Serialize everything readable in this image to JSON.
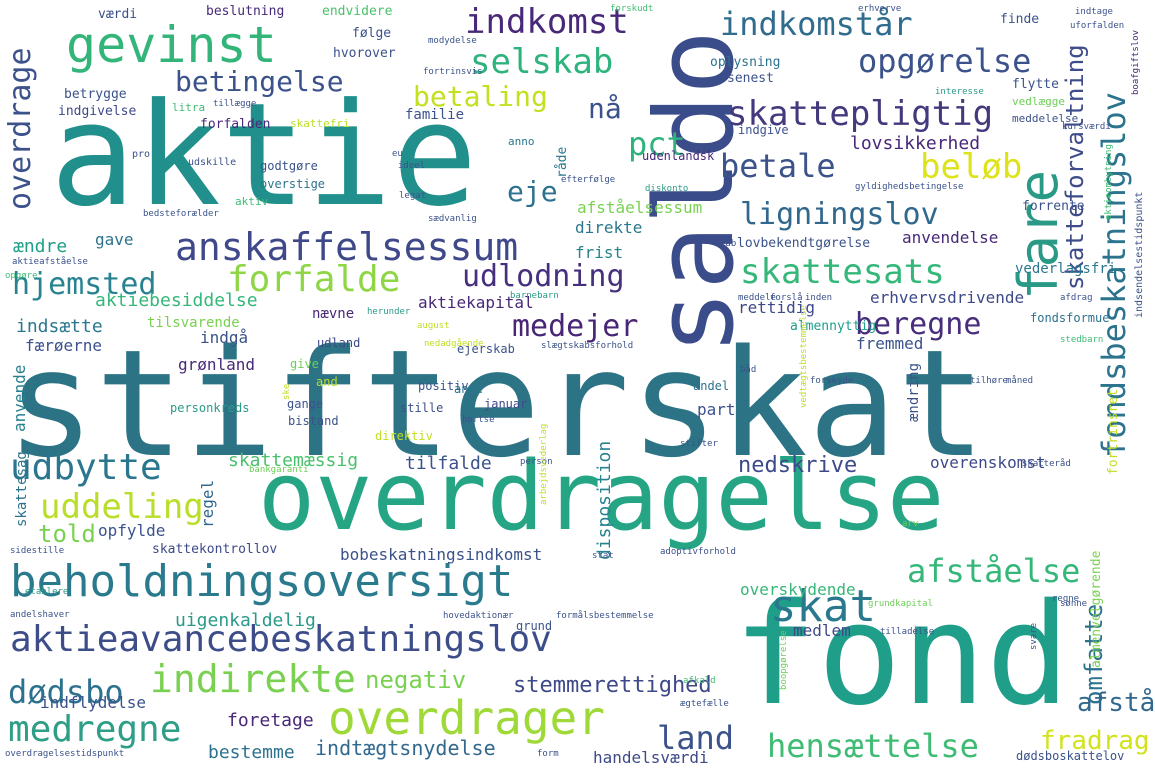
{
  "words": [
    {
      "text": "stifterskat",
      "color": "#2c7485"
    },
    {
      "text": "aktie",
      "color": "#21908c"
    },
    {
      "text": "overdragelse",
      "color": "#25a584"
    },
    {
      "text": "fond",
      "color": "#1f9e89"
    },
    {
      "text": "saldo",
      "color": "#3b4c8a"
    },
    {
      "text": "beholdningsoversigt",
      "color": "#2a7a8e"
    },
    {
      "text": "aktieavancebeskatningslov",
      "color": "#3d4d8a"
    },
    {
      "text": "overdrager",
      "color": "#9fd938"
    },
    {
      "text": "gevinst",
      "color": "#33b57a"
    },
    {
      "text": "fare",
      "color": "#2a9a87"
    },
    {
      "text": "fondsbeskatningslov",
      "color": "#2c738e"
    },
    {
      "text": "anskaffelsessum",
      "color": "#3f4889"
    },
    {
      "text": "indirekte",
      "color": "#7ad151"
    },
    {
      "text": "medregne",
      "color": "#2f9e87"
    },
    {
      "text": "forfalde",
      "color": "#8ed645"
    },
    {
      "text": "skattesats",
      "color": "#35b779"
    },
    {
      "text": "skatteforvaltning",
      "color": "#3e4c8a"
    },
    {
      "text": "indkomstår",
      "color": "#2f6c8e"
    },
    {
      "text": "opgørelse",
      "color": "#3b528b"
    },
    {
      "text": "selskab",
      "color": "#2eb37c"
    },
    {
      "text": "indkomst",
      "color": "#482878"
    },
    {
      "text": "betingelse",
      "color": "#3b528b"
    },
    {
      "text": "betaling",
      "color": "#c5e021"
    },
    {
      "text": "skattepligtig",
      "color": "#44397d"
    },
    {
      "text": "overdrage",
      "color": "#3b528b"
    },
    {
      "text": "betale",
      "color": "#3b528b"
    },
    {
      "text": "beløb",
      "color": "#dde318"
    },
    {
      "text": "ligningslov",
      "color": "#31688e"
    },
    {
      "text": "hjemsted",
      "color": "#26838f"
    },
    {
      "text": "udlodning",
      "color": "#46307e"
    },
    {
      "text": "medejer",
      "color": "#482576"
    },
    {
      "text": "beregne",
      "color": "#472d7b"
    },
    {
      "text": "udbytte",
      "color": "#2a768e"
    },
    {
      "text": "uddeling",
      "color": "#b8de29"
    },
    {
      "text": "skat",
      "color": "#2a788e"
    },
    {
      "text": "afståelse",
      "color": "#35b779"
    },
    {
      "text": "omfatte",
      "color": "#2c728e"
    },
    {
      "text": "hensættelse",
      "color": "#3fbc73"
    },
    {
      "text": "land",
      "color": "#3b528b"
    },
    {
      "text": "dødsbo",
      "color": "#2c728e"
    },
    {
      "text": "stemmerettighed",
      "color": "#3e4989"
    },
    {
      "text": "negativ",
      "color": "#7ad151"
    },
    {
      "text": "fradrag",
      "color": "#d2e21b"
    },
    {
      "text": "afstå",
      "color": "#31688e"
    },
    {
      "text": "nå",
      "color": "#3b528b"
    },
    {
      "text": "pct",
      "color": "#2eb37c"
    },
    {
      "text": "eje",
      "color": "#2c728e"
    },
    {
      "text": "lovsikkerhed",
      "color": "#482878"
    },
    {
      "text": "told",
      "color": "#7ad151"
    },
    {
      "text": "nedskrive",
      "color": "#3e4989"
    },
    {
      "text": "tilfalde",
      "color": "#3b528b"
    },
    {
      "text": "skattemæssig",
      "color": "#4ac16d"
    },
    {
      "text": "overenskomst",
      "color": "#3e4989"
    },
    {
      "text": "indtægtsnydelse",
      "color": "#31688e"
    },
    {
      "text": "handelsværdi",
      "color": "#3e4989"
    },
    {
      "text": "bestemme",
      "color": "#2c728e"
    },
    {
      "text": "foretage",
      "color": "#482878"
    },
    {
      "text": "indflydelse",
      "color": "#3b528b"
    },
    {
      "text": "medlem",
      "color": "#3e4989"
    },
    {
      "text": "uigenkaldelig",
      "color": "#2a9a87"
    },
    {
      "text": "bobeskatningsindkomst",
      "color": "#3b528b"
    },
    {
      "text": "skattekontrollov",
      "color": "#3e4989"
    },
    {
      "text": "opfylde",
      "color": "#3b528b"
    },
    {
      "text": "regel",
      "color": "#31688e"
    },
    {
      "text": "overskydende",
      "color": "#35b779"
    },
    {
      "text": "disposition",
      "color": "#26838f"
    },
    {
      "text": "part",
      "color": "#3b528b"
    },
    {
      "text": "ændring",
      "color": "#3b528b"
    },
    {
      "text": "fremmed",
      "color": "#3b528b"
    },
    {
      "text": "almennyttig",
      "color": "#1f9e89"
    },
    {
      "text": "erhvervsdrivende",
      "color": "#3e4989"
    },
    {
      "text": "aktiekapital",
      "color": "#482878"
    },
    {
      "text": "aktiebesiddelse",
      "color": "#35b779"
    },
    {
      "text": "rettidig",
      "color": "#3e4989"
    },
    {
      "text": "fondsformue",
      "color": "#2c728e"
    },
    {
      "text": "anvendelse",
      "color": "#482878"
    },
    {
      "text": "vederlagsfri",
      "color": "#2a788e"
    },
    {
      "text": "lovbekendtgørelse",
      "color": "#3b528b"
    },
    {
      "text": "frist",
      "color": "#25858e"
    },
    {
      "text": "direkte",
      "color": "#2a788e"
    },
    {
      "text": "afståelsessum",
      "color": "#7ad151"
    },
    {
      "text": "forrente",
      "color": "#3b528b"
    },
    {
      "text": "ændre",
      "color": "#1f9e89"
    },
    {
      "text": "gave",
      "color": "#2c728e"
    },
    {
      "text": "indsætte",
      "color": "#2a788e"
    },
    {
      "text": "færøerne",
      "color": "#3b528b"
    },
    {
      "text": "nævne",
      "color": "#482878"
    },
    {
      "text": "indgå",
      "color": "#3b528b"
    },
    {
      "text": "grønland",
      "color": "#482878"
    },
    {
      "text": "anvende",
      "color": "#26828e"
    },
    {
      "text": "skattesag",
      "color": "#2c728e"
    },
    {
      "text": "tilsvarende",
      "color": "#7ad151"
    },
    {
      "text": "udland",
      "color": "#3e4989"
    },
    {
      "text": "ejerskab",
      "color": "#3b528b"
    },
    {
      "text": "positiv",
      "color": "#3b528b"
    },
    {
      "text": "anse",
      "color": "#2a788e"
    },
    {
      "text": "januar",
      "color": "#3e4989"
    },
    {
      "text": "stille",
      "color": "#3b528b"
    },
    {
      "text": "andel",
      "color": "#2c728e"
    },
    {
      "text": "gange",
      "color": "#3b528b"
    },
    {
      "text": "bistand",
      "color": "#3b528b"
    },
    {
      "text": "personkreds",
      "color": "#2a9a87"
    },
    {
      "text": "give",
      "color": "#6ece58"
    },
    {
      "text": "and",
      "color": "#bddf26"
    },
    {
      "text": "direktiv",
      "color": "#c2df23"
    },
    {
      "text": "værdi",
      "color": "#3b528b"
    },
    {
      "text": "beslutning",
      "color": "#482878"
    },
    {
      "text": "endvidere",
      "color": "#4ac16d"
    },
    {
      "text": "følge",
      "color": "#3b528b"
    },
    {
      "text": "hvorover",
      "color": "#3b528b"
    },
    {
      "text": "betrygge",
      "color": "#3b528b"
    },
    {
      "text": "indgivelse",
      "color": "#3e4989"
    },
    {
      "text": "familie",
      "color": "#3b528b"
    },
    {
      "text": "forfalden",
      "color": "#482878"
    },
    {
      "text": "skattefri",
      "color": "#bddf26"
    },
    {
      "text": "godtgøre",
      "color": "#3b528b"
    },
    {
      "text": "overstige",
      "color": "#2c728e"
    },
    {
      "text": "oplysning",
      "color": "#2c728e"
    },
    {
      "text": "senest",
      "color": "#3b528b"
    },
    {
      "text": "finde",
      "color": "#3b528b"
    },
    {
      "text": "flytte",
      "color": "#3b528b"
    },
    {
      "text": "vedlægge",
      "color": "#6ece58"
    },
    {
      "text": "meddelelse",
      "color": "#3b528b"
    },
    {
      "text": "indgive",
      "color": "#3b528b"
    },
    {
      "text": "udenlandsk",
      "color": "#482878"
    },
    {
      "text": "råde",
      "color": "#2a788e"
    },
    {
      "text": "anno",
      "color": "#2a788e"
    },
    {
      "text": "litra",
      "color": "#3fbc73"
    },
    {
      "text": "aktiv",
      "color": "#3fbc73"
    },
    {
      "text": "udskille",
      "color": "#3b528b"
    },
    {
      "text": "pro",
      "color": "#3b528b"
    },
    {
      "text": "indtage",
      "color": "#3b528b"
    },
    {
      "text": "uforfalden",
      "color": "#3b528b"
    },
    {
      "text": "forskudt",
      "color": "#3fbc73"
    },
    {
      "text": "modydelse",
      "color": "#3b528b"
    },
    {
      "text": "fortrinsvis",
      "color": "#3b528b"
    },
    {
      "text": "interesse",
      "color": "#2a9a87"
    },
    {
      "text": "boafgiftslov",
      "color": "#482878"
    },
    {
      "text": "kursværdi",
      "color": "#3b528b"
    },
    {
      "text": "tillægge",
      "color": "#3b528b"
    },
    {
      "text": "gyldighedsbetingelse",
      "color": "#3b528b"
    },
    {
      "text": "efterfølge",
      "color": "#3b528b"
    },
    {
      "text": "diskonto",
      "color": "#2a9a87"
    },
    {
      "text": "legat",
      "color": "#3b528b"
    },
    {
      "text": "ideel",
      "color": "#3b528b"
    },
    {
      "text": "eu",
      "color": "#3b528b"
    },
    {
      "text": "bedsteforælder",
      "color": "#3b528b"
    },
    {
      "text": "sædvanlig",
      "color": "#3b528b"
    },
    {
      "text": "aktieafståelse",
      "color": "#3b528b"
    },
    {
      "text": "opgøre",
      "color": "#3fbc73"
    },
    {
      "text": "herunder",
      "color": "#2a9a87"
    },
    {
      "text": "august",
      "color": "#bddf26"
    },
    {
      "text": "barnebarn",
      "color": "#2a9a87"
    },
    {
      "text": "tab",
      "color": "#3b528b"
    },
    {
      "text": "inden",
      "color": "#3b528b"
    },
    {
      "text": "meddele",
      "color": "#3b528b"
    },
    {
      "text": "forslå",
      "color": "#3b528b"
    },
    {
      "text": "afdrag",
      "color": "#3b528b"
    },
    {
      "text": "stedbarn",
      "color": "#3fbc73"
    },
    {
      "text": "slægtskabsforhold",
      "color": "#3b528b"
    },
    {
      "text": "nedadgående",
      "color": "#bddf26"
    },
    {
      "text": "tilhøre",
      "color": "#3b528b"
    },
    {
      "text": "måned",
      "color": "#3b528b"
    },
    {
      "text": "forskyde",
      "color": "#3b528b"
    },
    {
      "text": "båd",
      "color": "#3b528b"
    },
    {
      "text": "bortse",
      "color": "#3b528b"
    },
    {
      "text": "person",
      "color": "#3b528b"
    },
    {
      "text": "bankgaranti",
      "color": "#6ece58"
    },
    {
      "text": "stifter",
      "color": "#3b528b"
    },
    {
      "text": "skatteråd",
      "color": "#3b528b"
    },
    {
      "text": "stat",
      "color": "#3b528b"
    },
    {
      "text": "arv",
      "color": "#6ece58"
    },
    {
      "text": "adoptivforhold",
      "color": "#3b528b"
    },
    {
      "text": "hovedaktionær",
      "color": "#3b528b"
    },
    {
      "text": "formålsbestemmelse",
      "color": "#3b528b"
    },
    {
      "text": "grundkapital",
      "color": "#6ece58"
    },
    {
      "text": "tilladelse",
      "color": "#3b528b"
    },
    {
      "text": "regne",
      "color": "#3b528b"
    },
    {
      "text": "afkald",
      "color": "#3fbc73"
    },
    {
      "text": "ægtefælle",
      "color": "#3b528b"
    },
    {
      "text": "andelshaver",
      "color": "#3b528b"
    },
    {
      "text": "etablere",
      "color": "#2a9a87"
    },
    {
      "text": "sidestille",
      "color": "#3b528b"
    },
    {
      "text": "overdragelsestidspunkt",
      "color": "#3b528b"
    },
    {
      "text": "form",
      "color": "#3b528b"
    },
    {
      "text": "dødsboskattelov",
      "color": "#3b528b"
    },
    {
      "text": "grund",
      "color": "#3b528b"
    },
    {
      "text": "almenvelgørende",
      "color": "#7ad151"
    },
    {
      "text": "fortrinsret",
      "color": "#c2df23"
    },
    {
      "text": "indsendelsestidspunkt",
      "color": "#3b528b"
    },
    {
      "text": "erhverve",
      "color": "#3b528b"
    },
    {
      "text": "sønne",
      "color": "#3b528b"
    },
    {
      "text": "svare",
      "color": "#3b528b"
    },
    {
      "text": "boopgørelse",
      "color": "#6ece58"
    },
    {
      "text": "arbejdsvederlag",
      "color": "#bddf26"
    },
    {
      "text": "aktieombytning",
      "color": "#3fbc73"
    },
    {
      "text": "vedtægtsbestemmelse",
      "color": "#bddf26"
    },
    {
      "text": "ske",
      "color": "#bddf26"
    }
  ]
}
